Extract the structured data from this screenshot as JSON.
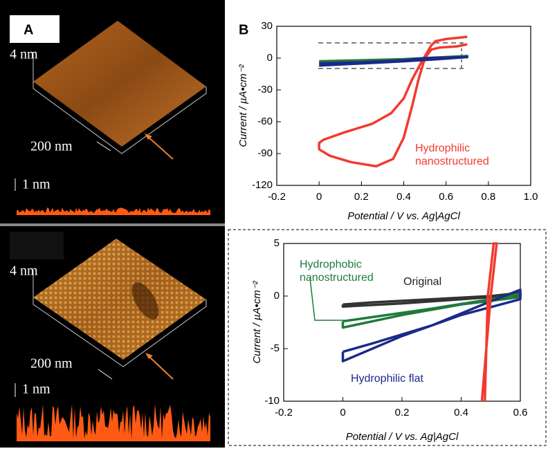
{
  "panel_a": {
    "label": "A",
    "top": {
      "height_label": "4 nm",
      "scale_label": "200 nm",
      "profile_label": "1 nm"
    },
    "bottom": {
      "height_label": "4 nm",
      "scale_label": "200 nm",
      "profile_label": "1 nm"
    }
  },
  "chart_data": [
    {
      "type": "line",
      "panel_label": "B",
      "x_label": "Potential / V  vs. Ag|AgCl",
      "y_label": "Current / µA•cm⁻²",
      "xlim": [
        -0.2,
        1
      ],
      "xticks": [
        -0.2,
        0,
        0.2,
        0.4,
        0.6,
        0.8,
        {
          "value": 1,
          "label": "1.0"
        }
      ],
      "ylim": [
        -120,
        30
      ],
      "yticks": [
        -120,
        -90,
        -60,
        -30,
        0,
        30
      ],
      "series": [
        {
          "color": "#f23a2e",
          "x": [
            0.7,
            0.6,
            0.55,
            0.53,
            0.51,
            0.48,
            0.44,
            0.4,
            0.34,
            0.25,
            0.12,
            0.02,
            0.0,
            0.0,
            0.05,
            0.15,
            0.27,
            0.35,
            0.4,
            0.44,
            0.47,
            0.5,
            0.53,
            0.57,
            0.65,
            0.7
          ],
          "values": [
            20,
            18,
            16,
            12,
            5,
            -5,
            -20,
            -38,
            -52,
            -62,
            -70,
            -77,
            -80,
            -86,
            -92,
            -98,
            -102,
            -95,
            -75,
            -45,
            -20,
            0,
            8,
            10,
            11,
            13
          ]
        },
        {
          "color": "#1f7a3c",
          "x": [
            0,
            0.2,
            0.4,
            0.5,
            0.6,
            0.7,
            0.7,
            0.5,
            0.3,
            0.1,
            0
          ],
          "values": [
            -3,
            -2,
            -1,
            0,
            1,
            2,
            1,
            -1,
            -2.5,
            -3.5,
            -4
          ]
        },
        {
          "color": "#1b2a8a",
          "x": [
            0,
            0.2,
            0.4,
            0.5,
            0.6,
            0.7,
            0.6,
            0.4,
            0.2,
            0
          ],
          "values": [
            -5,
            -4,
            -2,
            0,
            0.5,
            1,
            -0.5,
            -3,
            -5,
            -7
          ]
        }
      ],
      "annotations": [
        {
          "lines": [
            "Hydrophilic",
            "nanostructured"
          ],
          "color": "#f23a2e"
        }
      ]
    },
    {
      "type": "line",
      "x_label": "Potential / V  vs. Ag|AgCl",
      "y_label": "Current / µA•cm⁻²",
      "xlim": [
        -0.2,
        0.6
      ],
      "xticks": [
        -0.2,
        0,
        0.2,
        0.4,
        0.6
      ],
      "ylim": [
        -10,
        5
      ],
      "yticks": [
        -10,
        -5,
        0,
        5
      ],
      "series": [
        {
          "color": "#333333",
          "x": [
            0,
            0.1,
            0.3,
            0.5,
            0.6,
            0.6,
            0.4,
            0.2,
            0,
            0
          ],
          "values": [
            -0.8,
            -0.6,
            -0.3,
            0,
            0.3,
            0.1,
            -0.3,
            -0.7,
            -1.0,
            -0.8
          ]
        },
        {
          "color": "#1f7a3c",
          "x": [
            0,
            0.1,
            0.3,
            0.5,
            0.6,
            0.6,
            0.4,
            0.2,
            0,
            0
          ],
          "values": [
            -2.4,
            -2.0,
            -1.2,
            -0.3,
            0.2,
            -0.1,
            -0.8,
            -1.8,
            -3.0,
            -2.4
          ]
        },
        {
          "color": "#1b2a8a",
          "x": [
            0,
            0.1,
            0.3,
            0.5,
            0.6,
            0.6,
            0.4,
            0.2,
            0,
            0
          ],
          "values": [
            -5.3,
            -4.5,
            -2.8,
            -0.5,
            0.6,
            -0.3,
            -1.8,
            -3.8,
            -6.2,
            -5.3
          ]
        },
        {
          "color": "#f23a2e",
          "x": [
            0.47,
            0.5,
            0.52,
            0.51,
            0.49,
            0.48
          ],
          "values": [
            -10,
            0,
            5,
            5,
            0,
            -10
          ]
        }
      ],
      "annotations": [
        {
          "lines": [
            "Hydrophobic",
            "nanostructured"
          ],
          "color": "#1f7a3c"
        },
        {
          "lines": [
            "Original"
          ],
          "color": "#222222"
        },
        {
          "lines": [
            "Hydrophilic flat"
          ],
          "color": "#1b2a8a"
        }
      ]
    }
  ]
}
